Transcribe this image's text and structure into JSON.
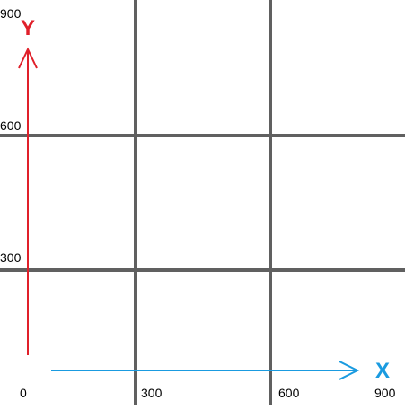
{
  "x_axis": {
    "label": "X",
    "ticks": [
      0,
      300,
      600,
      900
    ]
  },
  "y_axis": {
    "label": "Y",
    "ticks": [
      900,
      600,
      300
    ]
  }
}
